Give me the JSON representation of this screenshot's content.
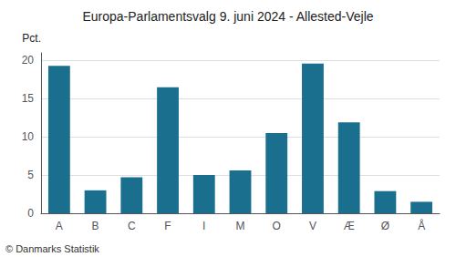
{
  "chart_data": {
    "type": "bar",
    "title": "Europa-Parlamentsvalg 9. juni 2024 - Allested-Vejle",
    "ylabel": "Pct.",
    "annotations": [
      "© Danmarks Statistik"
    ],
    "categories": [
      "A",
      "B",
      "C",
      "F",
      "I",
      "M",
      "O",
      "V",
      "Æ",
      "Ø",
      "Å"
    ],
    "values": [
      19.3,
      3.0,
      4.7,
      16.5,
      5.0,
      5.6,
      10.5,
      19.6,
      11.9,
      2.9,
      1.5
    ],
    "color": "#1a6e8e",
    "ylim": [
      0,
      21
    ],
    "yticks": [
      0,
      5,
      10,
      15,
      20
    ],
    "grid": true
  }
}
